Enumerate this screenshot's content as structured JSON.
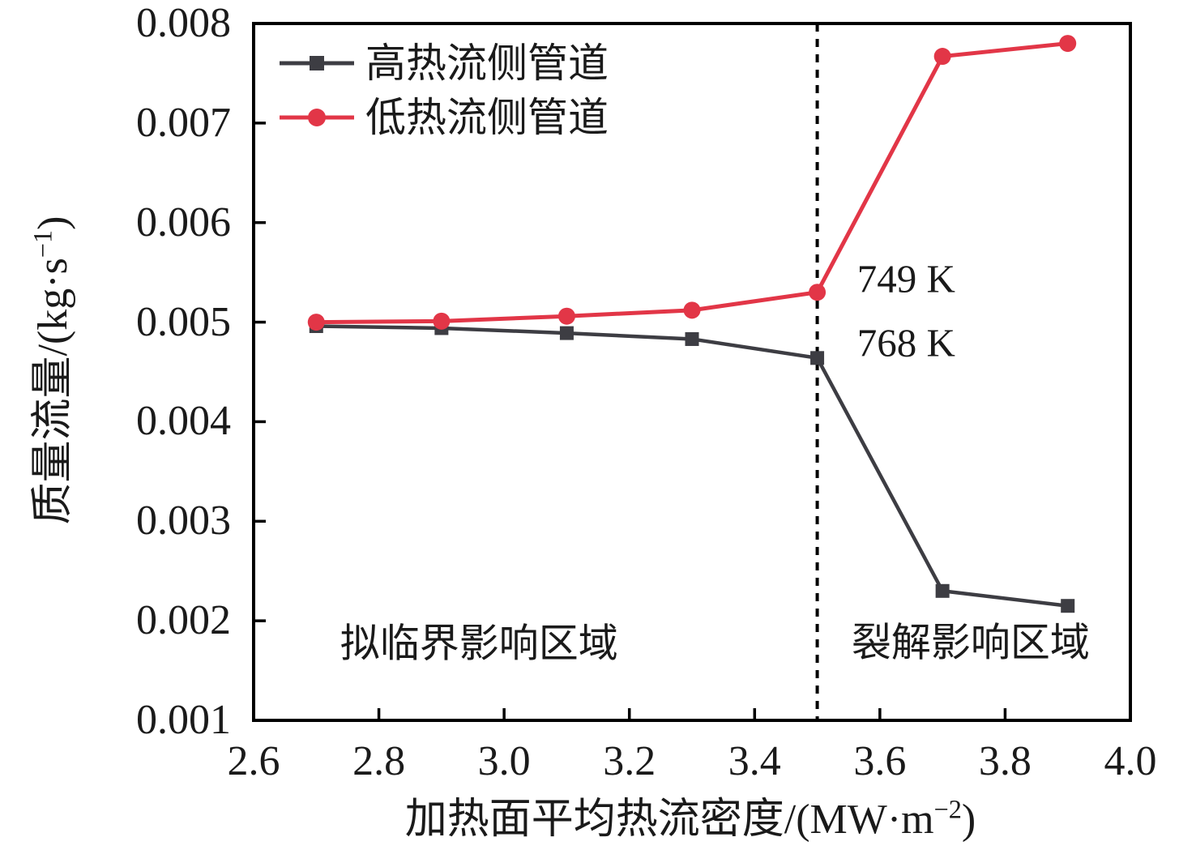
{
  "chart_data": {
    "type": "line",
    "title": "",
    "x": [
      2.7,
      2.9,
      3.1,
      3.3,
      3.5,
      3.7,
      3.9
    ],
    "series": [
      {
        "name": "高热流侧管道",
        "marker": "square",
        "color": "#3d3d43",
        "values": [
          0.00496,
          0.00494,
          0.00489,
          0.00483,
          0.00464,
          0.0023,
          0.00215
        ]
      },
      {
        "name": "低热流侧管道",
        "marker": "circle",
        "color": "#e23647",
        "values": [
          0.005,
          0.00501,
          0.00506,
          0.00512,
          0.0053,
          0.00767,
          0.0078
        ]
      }
    ],
    "xlabel": {
      "pre": "加热面平均热流密度/(MW·m",
      "sup": "−2",
      "post": ")"
    },
    "ylabel": {
      "pre": "质量流量/(kg·s",
      "sup": "−1",
      "post": ")"
    },
    "xlim": [
      2.6,
      4.0
    ],
    "ylim": [
      0.001,
      0.008
    ],
    "xtick_labels": [
      "2.6",
      "2.8",
      "3.0",
      "3.2",
      "3.4",
      "3.6",
      "3.8",
      "4.0"
    ],
    "ytick_labels": [
      "0.001",
      "0.002",
      "0.003",
      "0.004",
      "0.005",
      "0.006",
      "0.007",
      "0.008"
    ],
    "grid": false,
    "legend_position": "top-left-inside",
    "vline": {
      "x": 3.5,
      "style": "dashed",
      "color": "#000000"
    },
    "annotations": [
      {
        "text": "749 K",
        "x": 3.642,
        "y": 0.00544
      },
      {
        "text": "768 K",
        "x": 3.642,
        "y": 0.00479
      },
      {
        "text": "拟临界影响区域",
        "x": 2.96,
        "y": 0.00177
      },
      {
        "text": "裂解影响区域",
        "x": 3.745,
        "y": 0.00178
      }
    ],
    "axis_color": "#000000",
    "text_color": "#1a1a1a"
  }
}
